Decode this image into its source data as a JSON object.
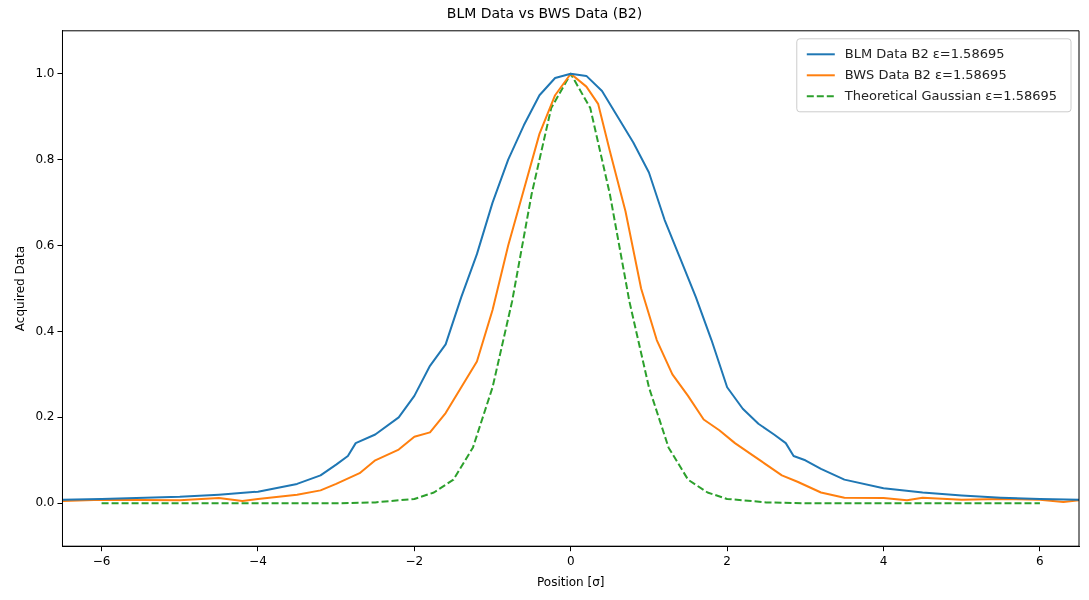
{
  "chart_data": {
    "type": "line",
    "title": "BLM Data vs BWS Data (B2)",
    "xlabel": "Position [σ]",
    "ylabel": "Acquired Data",
    "xlim": [
      -6.5,
      6.5
    ],
    "ylim": [
      -0.1,
      1.1
    ],
    "xticks": [
      {
        "value": -6,
        "label": "−6"
      },
      {
        "value": -4,
        "label": "−4"
      },
      {
        "value": -2,
        "label": "−2"
      },
      0,
      2,
      4,
      6
    ],
    "yticks": [
      {
        "value": 0,
        "label": "0.0"
      },
      {
        "value": 0.2,
        "label": "0.2"
      },
      {
        "value": 0.4,
        "label": "0.4"
      },
      {
        "value": 0.6,
        "label": "0.6"
      },
      {
        "value": 0.8,
        "label": "0.8"
      },
      {
        "value": 1,
        "label": "1.0"
      }
    ],
    "grid": false,
    "legend": "top right",
    "marker": "none",
    "series": [
      {
        "name": "BLM Data B2 ε=1.58695",
        "color": "#1f77b4",
        "line_style": "solid",
        "x": [
          -6.5,
          -6,
          -5,
          -4.5,
          -4,
          -3.5,
          -3.2,
          -3,
          -2.85,
          -2.75,
          -2.5,
          -2.2,
          -2,
          -1.8,
          -1.6,
          -1.4,
          -1.2,
          -1,
          -0.8,
          -0.6,
          -0.4,
          -0.2,
          0,
          0.2,
          0.4,
          0.6,
          0.8,
          1,
          1.2,
          1.4,
          1.6,
          1.8,
          2,
          2.2,
          2.4,
          2.6,
          2.75,
          2.85,
          3,
          3.2,
          3.5,
          4,
          4.5,
          5,
          5.5,
          6,
          6.5
        ],
        "values": [
          0.008,
          0.01,
          0.015,
          0.02,
          0.027,
          0.045,
          0.065,
          0.09,
          0.11,
          0.14,
          0.16,
          0.2,
          0.25,
          0.32,
          0.37,
          0.48,
          0.58,
          0.7,
          0.8,
          0.88,
          0.95,
          0.99,
          1.0,
          0.995,
          0.96,
          0.9,
          0.84,
          0.77,
          0.66,
          0.57,
          0.48,
          0.38,
          0.27,
          0.22,
          0.185,
          0.16,
          0.14,
          0.11,
          0.1,
          0.08,
          0.055,
          0.035,
          0.025,
          0.018,
          0.013,
          0.01,
          0.008
        ]
      },
      {
        "name": "BWS Data B2 ε=1.58695",
        "color": "#ff7f0e",
        "line_style": "solid",
        "x": [
          -6.5,
          -6,
          -5,
          -4.5,
          -4.2,
          -4,
          -3.5,
          -3.2,
          -3,
          -2.7,
          -2.5,
          -2.2,
          -2,
          -1.8,
          -1.6,
          -1.4,
          -1.2,
          -1,
          -0.8,
          -0.6,
          -0.4,
          -0.2,
          0,
          0.2,
          0.35,
          0.5,
          0.7,
          0.9,
          1.1,
          1.3,
          1.5,
          1.7,
          1.9,
          2.1,
          2.3,
          2.5,
          2.7,
          2.9,
          3.2,
          3.5,
          4,
          4.3,
          4.5,
          5,
          5.5,
          6,
          6.3,
          6.5
        ],
        "values": [
          0.005,
          0.008,
          0.007,
          0.012,
          0.005,
          0.01,
          0.02,
          0.03,
          0.045,
          0.07,
          0.1,
          0.125,
          0.155,
          0.165,
          0.21,
          0.27,
          0.33,
          0.45,
          0.6,
          0.73,
          0.86,
          0.95,
          1.0,
          0.97,
          0.93,
          0.82,
          0.68,
          0.5,
          0.38,
          0.3,
          0.25,
          0.195,
          0.17,
          0.14,
          0.115,
          0.09,
          0.065,
          0.05,
          0.025,
          0.013,
          0.012,
          0.007,
          0.013,
          0.008,
          0.01,
          0.008,
          0.003,
          0.007
        ]
      },
      {
        "name": "Theoretical Gaussian ε=1.58695",
        "color": "#2ca02c",
        "line_style": "dashed",
        "x": [
          -6,
          -3,
          -2.5,
          -2,
          -1.75,
          -1.5,
          -1.25,
          -1,
          -0.75,
          -0.5,
          -0.25,
          0,
          0.25,
          0.5,
          0.75,
          1,
          1.25,
          1.5,
          1.75,
          2,
          2.5,
          3,
          6
        ],
        "values": [
          0,
          0,
          0.002,
          0.01,
          0.025,
          0.055,
          0.13,
          0.27,
          0.47,
          0.72,
          0.92,
          1.0,
          0.92,
          0.72,
          0.47,
          0.27,
          0.13,
          0.055,
          0.025,
          0.01,
          0.002,
          0,
          0
        ]
      }
    ]
  }
}
